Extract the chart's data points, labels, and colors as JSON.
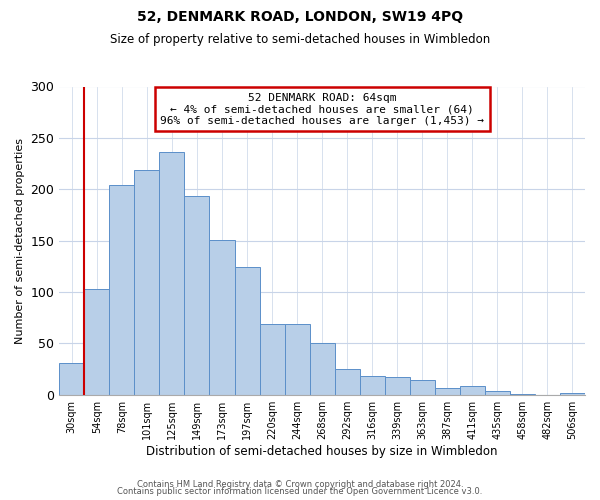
{
  "title": "52, DENMARK ROAD, LONDON, SW19 4PQ",
  "subtitle": "Size of property relative to semi-detached houses in Wimbledon",
  "xlabel": "Distribution of semi-detached houses by size in Wimbledon",
  "ylabel": "Number of semi-detached properties",
  "bar_labels": [
    "30sqm",
    "54sqm",
    "78sqm",
    "101sqm",
    "125sqm",
    "149sqm",
    "173sqm",
    "197sqm",
    "220sqm",
    "244sqm",
    "268sqm",
    "292sqm",
    "316sqm",
    "339sqm",
    "363sqm",
    "387sqm",
    "411sqm",
    "435sqm",
    "458sqm",
    "482sqm",
    "506sqm"
  ],
  "bar_values": [
    31,
    103,
    204,
    219,
    236,
    193,
    151,
    124,
    69,
    69,
    50,
    25,
    18,
    17,
    14,
    7,
    8,
    4,
    1,
    0,
    2
  ],
  "bar_color": "#b8cfe8",
  "bar_edge_color": "#5b8fc9",
  "annotation_title": "52 DENMARK ROAD: 64sqm",
  "annotation_line1": "← 4% of semi-detached houses are smaller (64)",
  "annotation_line2": "96% of semi-detached houses are larger (1,453) →",
  "annotation_box_color": "#ffffff",
  "annotation_box_edge_color": "#cc0000",
  "vline_color": "#cc0000",
  "ylim": [
    0,
    300
  ],
  "yticks": [
    0,
    50,
    100,
    150,
    200,
    250,
    300
  ],
  "footer_line1": "Contains HM Land Registry data © Crown copyright and database right 2024.",
  "footer_line2": "Contains public sector information licensed under the Open Government Licence v3.0.",
  "background_color": "#ffffff",
  "grid_color": "#c8d4e8"
}
